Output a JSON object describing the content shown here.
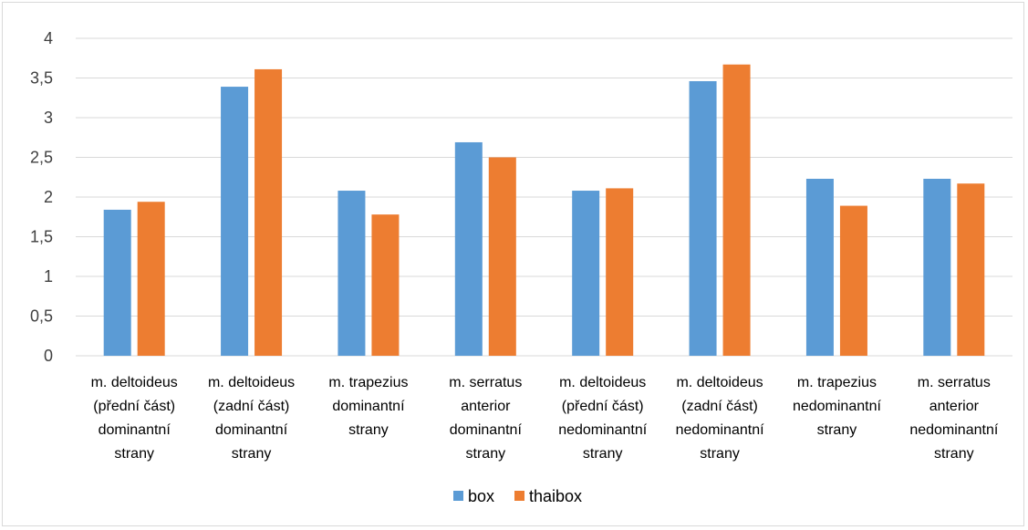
{
  "colors": {
    "box": "#5b9bd5",
    "thaibox": "#ed7d31",
    "grid": "#d9d9d9"
  },
  "chart_data": {
    "type": "bar",
    "categories": [
      [
        "m. deltoideus",
        "(přední část)",
        "dominantní",
        "strany"
      ],
      [
        "m. deltoideus",
        "(zadní část)",
        "dominantní",
        "strany"
      ],
      [
        "m. trapezius",
        "dominantní",
        "strany"
      ],
      [
        "m. serratus",
        "anterior",
        "dominantní",
        "strany"
      ],
      [
        "m. deltoideus",
        "(přední část)",
        "nedominantní",
        "strany"
      ],
      [
        "m. deltoideus",
        "(zadní část)",
        "nedominantní",
        "strany"
      ],
      [
        "m. trapezius",
        "nedominantní",
        "strany"
      ],
      [
        "m. serratus",
        "anterior",
        "nedominantní",
        "strany"
      ]
    ],
    "series": [
      {
        "name": "box",
        "values": [
          1.84,
          3.39,
          2.08,
          2.69,
          2.08,
          3.46,
          2.23,
          2.23
        ]
      },
      {
        "name": "thaibox",
        "values": [
          1.94,
          3.61,
          1.78,
          2.5,
          2.11,
          3.67,
          1.89,
          2.17
        ]
      }
    ],
    "yticks": [
      "0",
      "0,5",
      "1",
      "1,5",
      "2",
      "2,5",
      "3",
      "3,5",
      "4"
    ],
    "ylim": [
      0,
      4
    ],
    "grid": true,
    "legend": "bottom-center",
    "title": "",
    "xlabel": "",
    "ylabel": ""
  }
}
